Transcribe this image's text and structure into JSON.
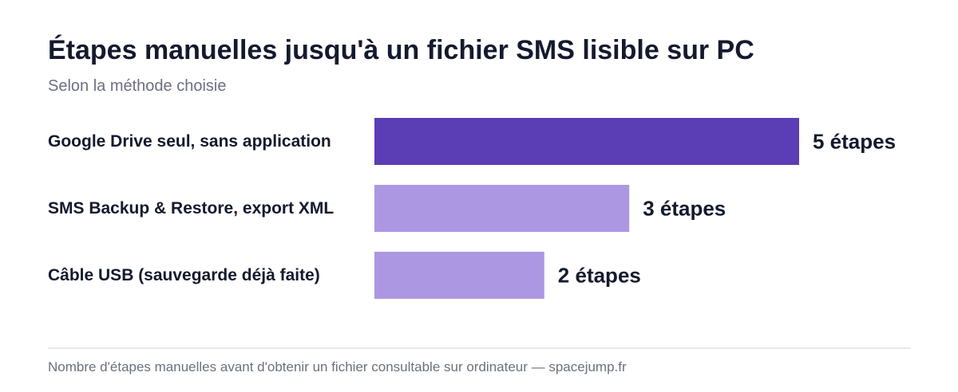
{
  "chart_data": {
    "type": "bar",
    "orientation": "horizontal",
    "title": "Étapes manuelles jusqu'à un fichier SMS lisible sur PC",
    "subtitle": "Selon la méthode choisie",
    "categories": [
      "Google Drive seul, sans application",
      "SMS Backup & Restore, export XML",
      "Câble USB (sauvegarde déjà faite)"
    ],
    "values": [
      5,
      3,
      2
    ],
    "value_labels": [
      "5 étapes",
      "3 étapes",
      "2 étapes"
    ],
    "bar_colors": [
      "#5b3db5",
      "#ac97e2",
      "#ac97e2"
    ],
    "xlim": [
      0,
      5
    ],
    "grid": false,
    "legend": "none",
    "footnote": "Nombre d'étapes manuelles avant d'obtenir un fichier consultable sur ordinateur — spacejump.fr"
  }
}
